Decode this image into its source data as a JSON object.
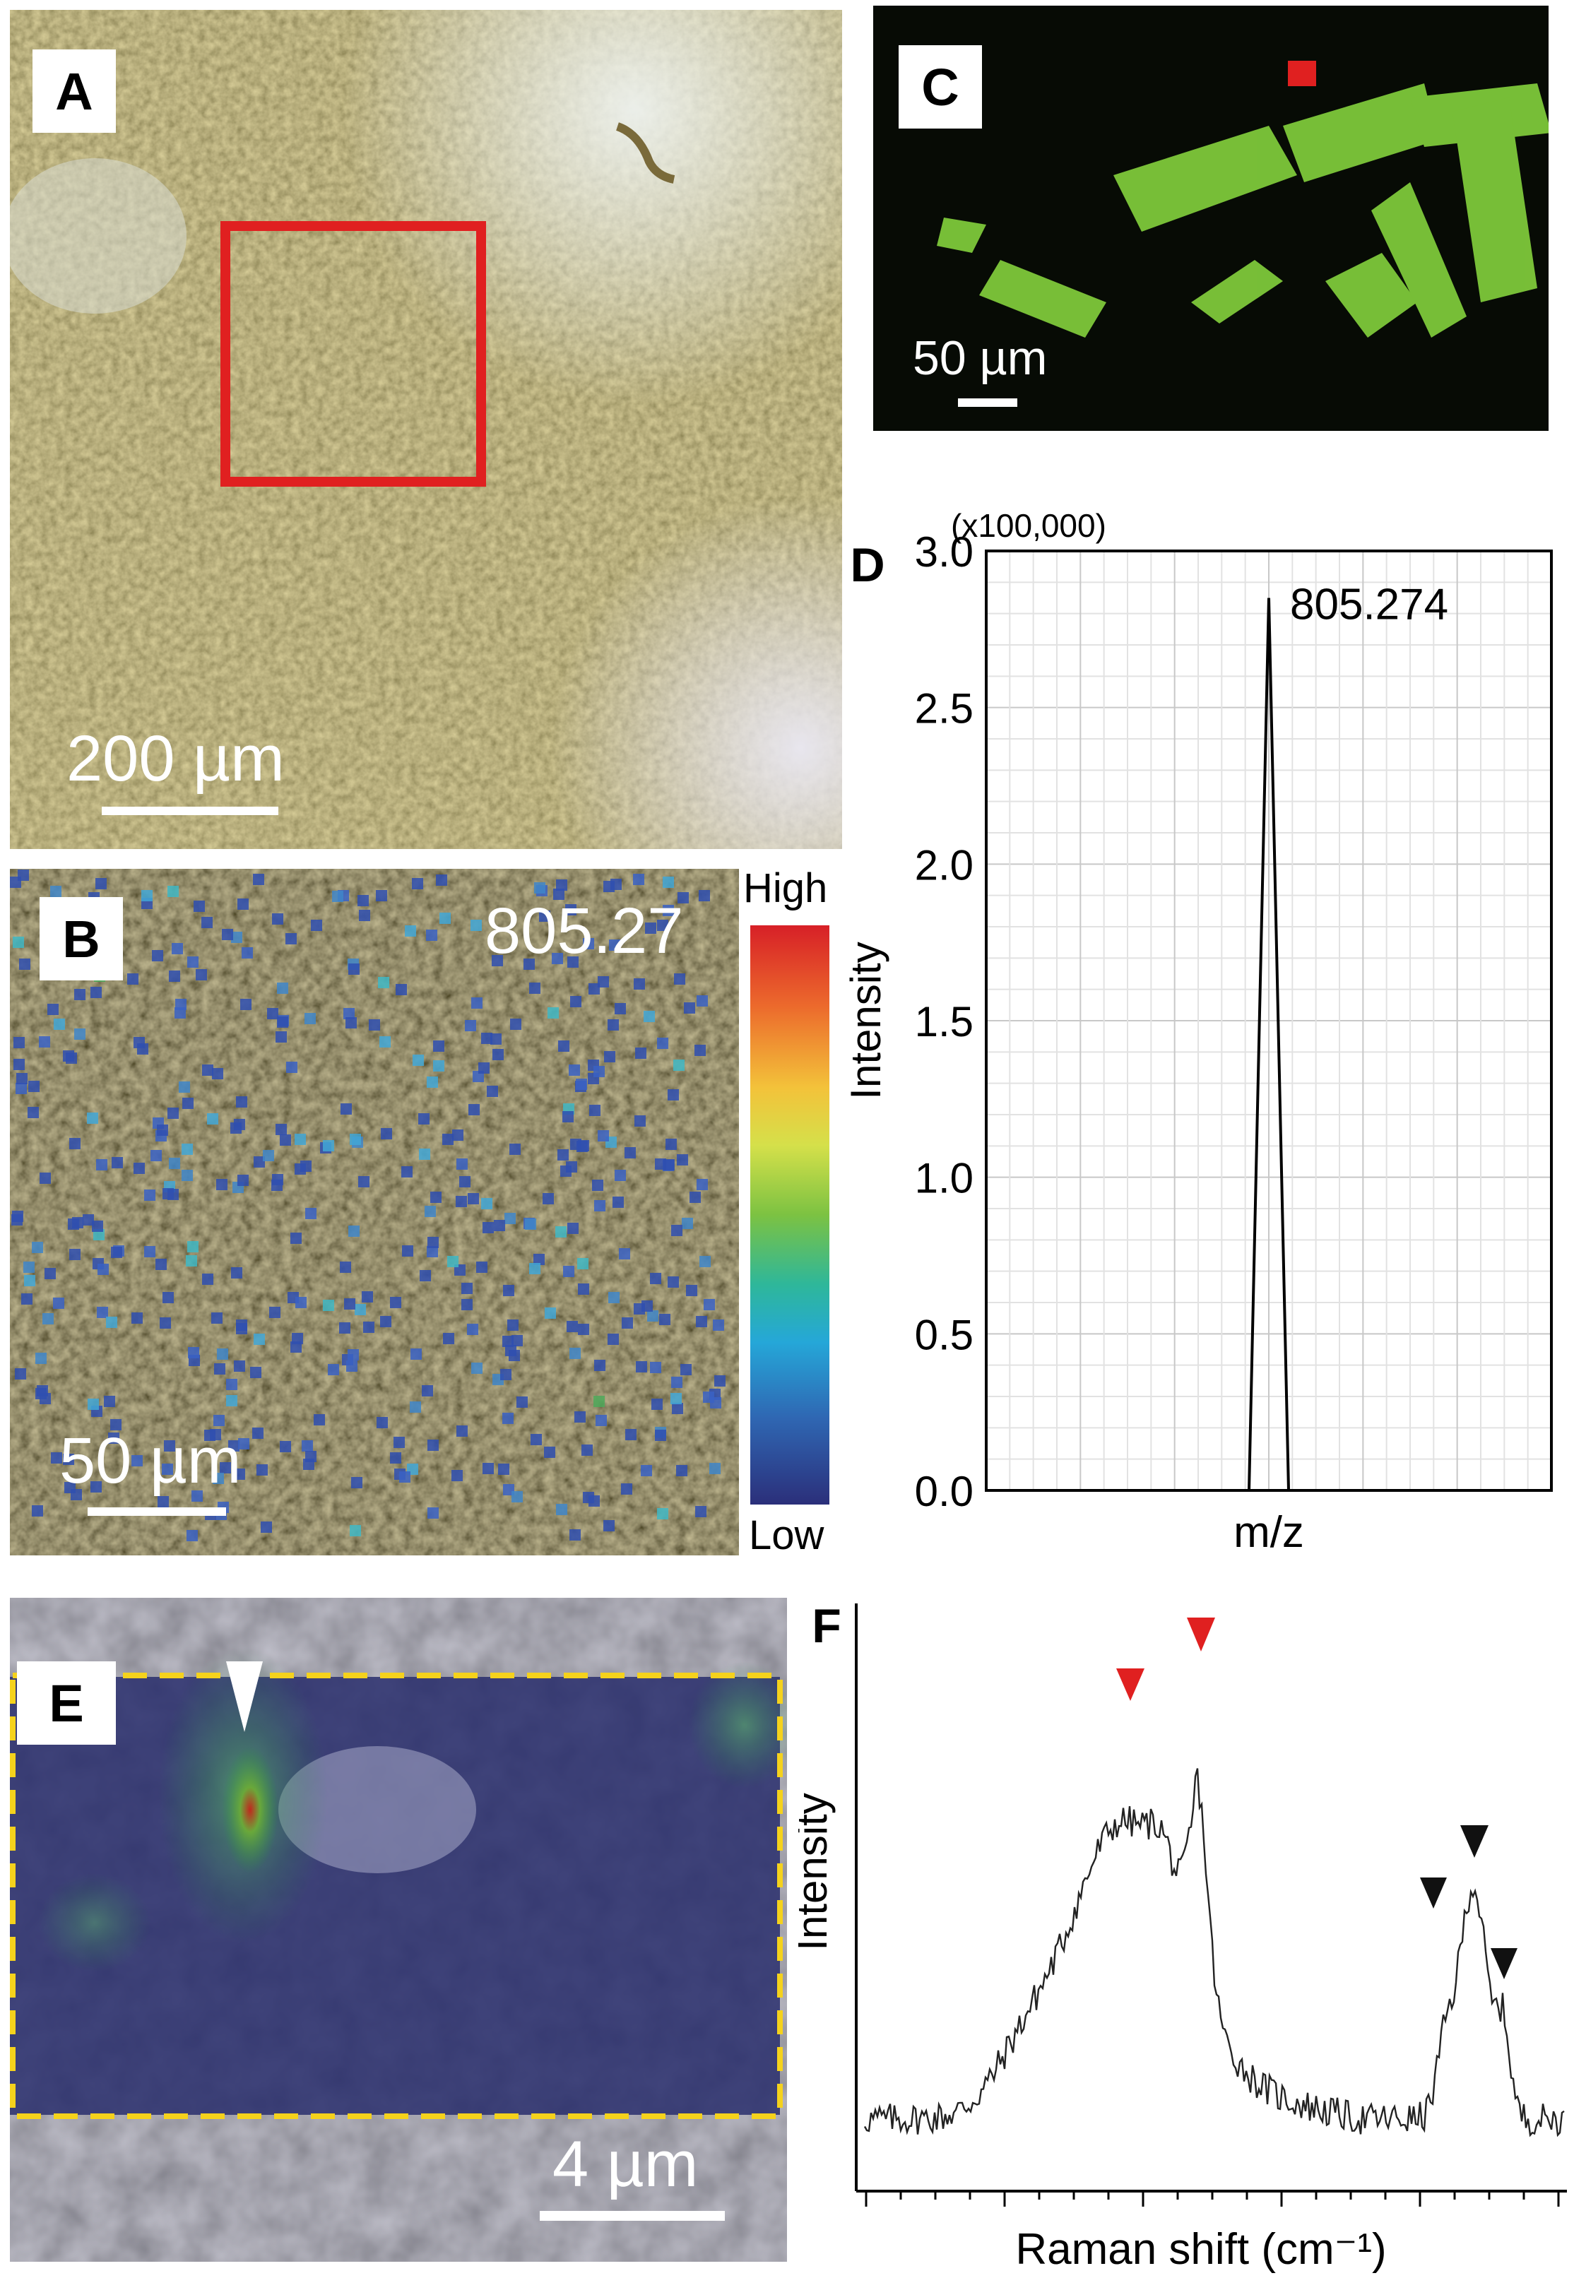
{
  "panels": {
    "a": {
      "letter": "A",
      "scale": "200 µm"
    },
    "b": {
      "letter": "B",
      "mz_label": "805.27",
      "scale": "50 µm",
      "colorbar_high": "High",
      "colorbar_low": "Low"
    },
    "c": {
      "letter": "C",
      "scale": "50 µm"
    },
    "d": {
      "letter": "D"
    },
    "e": {
      "letter": "E",
      "scale": "4 µm"
    },
    "f": {
      "letter": "F"
    }
  },
  "chart_data": [
    {
      "panel": "D",
      "type": "line",
      "title": "",
      "xlabel": "m/z",
      "ylabel": "Intensity",
      "y_multiplier_label": "(x100,000)",
      "ylim": [
        0,
        3.0
      ],
      "yticks": [
        "0.0",
        "0.5",
        "1.0",
        "1.5",
        "2.0",
        "2.5",
        "3.0"
      ],
      "grid": true,
      "peak_label": "805.274",
      "x": [
        -1,
        0,
        1
      ],
      "values": [
        0,
        2.85,
        0
      ]
    },
    {
      "panel": "F",
      "type": "line",
      "title": "",
      "xlabel": "Raman shift (cm⁻¹)",
      "ylabel": "Intensity",
      "grid": false,
      "markers_red": 2,
      "markers_black": 3
    }
  ]
}
